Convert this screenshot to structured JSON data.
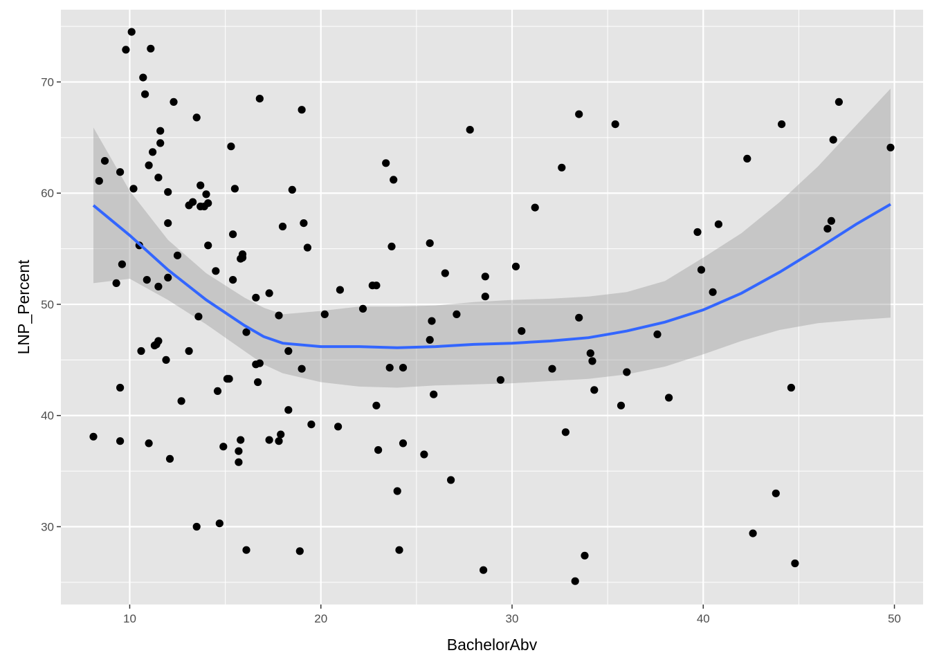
{
  "chart_data": {
    "type": "scatter",
    "xlabel": "BachelorAbv",
    "ylabel": "LNP_Percent",
    "xlim": [
      6.4,
      51.5
    ],
    "ylim": [
      23,
      76.5
    ],
    "x_ticks": [
      10,
      20,
      30,
      40,
      50
    ],
    "y_ticks": [
      30,
      40,
      50,
      60,
      70
    ],
    "x_tick_labels": [
      "10",
      "20",
      "30",
      "40",
      "50"
    ],
    "y_tick_labels": [
      "30",
      "40",
      "50",
      "60",
      "70"
    ],
    "grid": true,
    "legend": "none",
    "colors": {
      "panel": "#e5e5e5",
      "grid": "#ffffff",
      "points": "#000000",
      "smooth_line": "#3366ff",
      "confidence_band": "#999999"
    },
    "points": [
      [
        8.1,
        38.1
      ],
      [
        8.4,
        61.1
      ],
      [
        8.7,
        62.9
      ],
      [
        9.3,
        51.9
      ],
      [
        9.5,
        42.5
      ],
      [
        9.5,
        37.7
      ],
      [
        9.5,
        61.9
      ],
      [
        9.6,
        53.6
      ],
      [
        9.8,
        72.9
      ],
      [
        10.1,
        74.5
      ],
      [
        10.2,
        60.4
      ],
      [
        10.5,
        55.3
      ],
      [
        10.6,
        45.8
      ],
      [
        10.7,
        70.4
      ],
      [
        10.8,
        68.9
      ],
      [
        10.9,
        52.2
      ],
      [
        11.0,
        37.5
      ],
      [
        11.0,
        62.5
      ],
      [
        11.1,
        73.0
      ],
      [
        11.2,
        63.7
      ],
      [
        11.3,
        46.3
      ],
      [
        11.4,
        46.4
      ],
      [
        11.5,
        51.6
      ],
      [
        11.5,
        46.7
      ],
      [
        11.5,
        61.4
      ],
      [
        11.6,
        64.5
      ],
      [
        11.6,
        65.6
      ],
      [
        11.9,
        45.0
      ],
      [
        12.0,
        52.4
      ],
      [
        12.0,
        57.3
      ],
      [
        12.0,
        60.1
      ],
      [
        12.1,
        36.1
      ],
      [
        12.3,
        68.2
      ],
      [
        12.5,
        54.4
      ],
      [
        12.7,
        41.3
      ],
      [
        13.1,
        58.9
      ],
      [
        13.1,
        45.8
      ],
      [
        13.3,
        59.2
      ],
      [
        13.5,
        66.8
      ],
      [
        13.6,
        48.9
      ],
      [
        13.5,
        30.0
      ],
      [
        13.7,
        58.8
      ],
      [
        13.7,
        60.7
      ],
      [
        13.9,
        58.8
      ],
      [
        14.0,
        59.9
      ],
      [
        14.1,
        55.3
      ],
      [
        14.1,
        59.1
      ],
      [
        14.5,
        53.0
      ],
      [
        14.6,
        42.2
      ],
      [
        14.7,
        30.3
      ],
      [
        14.9,
        37.2
      ],
      [
        15.1,
        43.3
      ],
      [
        15.2,
        43.3
      ],
      [
        15.3,
        64.2
      ],
      [
        15.4,
        52.2
      ],
      [
        15.4,
        56.3
      ],
      [
        15.5,
        60.4
      ],
      [
        15.7,
        36.8
      ],
      [
        15.7,
        35.8
      ],
      [
        15.8,
        37.8
      ],
      [
        15.8,
        54.1
      ],
      [
        15.9,
        54.2
      ],
      [
        15.9,
        54.5
      ],
      [
        16.1,
        27.9
      ],
      [
        16.1,
        47.5
      ],
      [
        16.6,
        44.6
      ],
      [
        16.6,
        50.6
      ],
      [
        16.7,
        43.0
      ],
      [
        16.8,
        68.5
      ],
      [
        16.8,
        44.7
      ],
      [
        17.3,
        37.8
      ],
      [
        17.3,
        51.0
      ],
      [
        17.8,
        49.0
      ],
      [
        17.8,
        37.7
      ],
      [
        17.9,
        38.3
      ],
      [
        18.0,
        57.0
      ],
      [
        18.3,
        45.8
      ],
      [
        18.3,
        40.5
      ],
      [
        18.5,
        60.3
      ],
      [
        18.9,
        27.8
      ],
      [
        19.0,
        67.5
      ],
      [
        19.0,
        44.2
      ],
      [
        19.1,
        57.3
      ],
      [
        19.3,
        55.1
      ],
      [
        19.5,
        39.2
      ],
      [
        20.2,
        49.1
      ],
      [
        20.9,
        39.0
      ],
      [
        21.0,
        51.3
      ],
      [
        22.2,
        49.6
      ],
      [
        22.7,
        51.7
      ],
      [
        22.9,
        51.7
      ],
      [
        22.9,
        40.9
      ],
      [
        23.0,
        36.9
      ],
      [
        23.4,
        62.7
      ],
      [
        23.6,
        44.3
      ],
      [
        23.7,
        55.2
      ],
      [
        23.8,
        61.2
      ],
      [
        24.0,
        33.2
      ],
      [
        24.1,
        27.9
      ],
      [
        24.3,
        44.3
      ],
      [
        24.3,
        37.5
      ],
      [
        25.4,
        36.5
      ],
      [
        25.7,
        46.8
      ],
      [
        25.7,
        55.5
      ],
      [
        25.8,
        48.5
      ],
      [
        25.9,
        41.9
      ],
      [
        26.5,
        52.8
      ],
      [
        26.8,
        34.2
      ],
      [
        27.1,
        49.1
      ],
      [
        27.8,
        65.7
      ],
      [
        28.5,
        26.1
      ],
      [
        28.6,
        52.5
      ],
      [
        28.6,
        50.7
      ],
      [
        29.4,
        43.2
      ],
      [
        30.2,
        53.4
      ],
      [
        30.5,
        47.6
      ],
      [
        31.2,
        58.7
      ],
      [
        32.1,
        44.2
      ],
      [
        32.6,
        62.3
      ],
      [
        32.8,
        38.5
      ],
      [
        33.3,
        25.1
      ],
      [
        33.5,
        67.1
      ],
      [
        33.5,
        48.8
      ],
      [
        33.8,
        27.4
      ],
      [
        34.1,
        45.6
      ],
      [
        34.2,
        44.9
      ],
      [
        34.3,
        42.3
      ],
      [
        35.4,
        66.2
      ],
      [
        35.7,
        40.9
      ],
      [
        36.0,
        43.9
      ],
      [
        37.6,
        47.3
      ],
      [
        38.2,
        41.6
      ],
      [
        39.7,
        56.5
      ],
      [
        39.9,
        53.1
      ],
      [
        40.5,
        51.1
      ],
      [
        40.8,
        57.2
      ],
      [
        42.3,
        63.1
      ],
      [
        42.6,
        29.4
      ],
      [
        43.8,
        33.0
      ],
      [
        44.1,
        66.2
      ],
      [
        44.6,
        42.5
      ],
      [
        44.8,
        26.7
      ],
      [
        46.5,
        56.8
      ],
      [
        46.7,
        57.5
      ],
      [
        46.8,
        64.8
      ],
      [
        47.1,
        68.2
      ],
      [
        49.8,
        64.1
      ]
    ],
    "smooth_line": {
      "x": [
        8.1,
        10,
        12,
        14,
        16,
        17,
        18,
        20,
        22,
        24,
        26,
        28,
        30,
        32,
        34,
        36,
        38,
        40,
        42,
        44,
        46,
        48,
        49.8
      ],
      "y": [
        58.9,
        56.2,
        53.1,
        50.4,
        48.1,
        47.1,
        46.5,
        46.2,
        46.2,
        46.1,
        46.2,
        46.4,
        46.5,
        46.7,
        47.0,
        47.6,
        48.4,
        49.5,
        51.0,
        52.9,
        55.0,
        57.2,
        59.0
      ]
    },
    "confidence_band": {
      "x": [
        8.1,
        10,
        12,
        14,
        16,
        17,
        18,
        20,
        22,
        24,
        26,
        28,
        30,
        32,
        34,
        36,
        38,
        40,
        42,
        44,
        46,
        48,
        49.8
      ],
      "upper": [
        65.9,
        60.2,
        55.8,
        52.8,
        50.6,
        49.7,
        49.1,
        49.4,
        49.8,
        49.8,
        49.9,
        50.2,
        50.4,
        50.5,
        50.7,
        51.1,
        52.1,
        54.2,
        56.4,
        59.2,
        62.4,
        66.1,
        69.4
      ],
      "lower": [
        51.9,
        52.3,
        50.4,
        48.2,
        45.8,
        44.6,
        43.8,
        43.0,
        42.6,
        42.5,
        42.7,
        42.8,
        42.9,
        43.1,
        43.3,
        43.7,
        44.4,
        45.5,
        46.7,
        47.7,
        48.3,
        48.6,
        48.8
      ]
    }
  }
}
